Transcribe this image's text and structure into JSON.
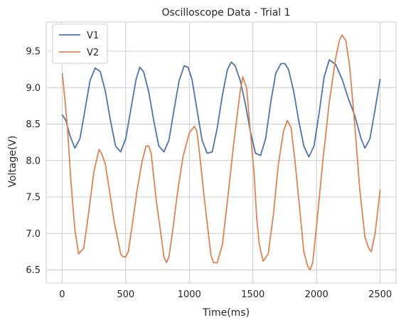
{
  "chart_data": {
    "type": "line",
    "title": "Oscilloscope Data - Trial 1",
    "xlabel": "Time(ms)",
    "ylabel": "Voltage(V)",
    "xlim": [
      -125,
      2625
    ],
    "ylim": [
      6.32,
      9.9
    ],
    "xticks": [
      0,
      500,
      1000,
      1500,
      2000,
      2500
    ],
    "yticks": [
      6.5,
      7.0,
      7.5,
      8.0,
      8.5,
      9.0,
      9.5
    ],
    "ytick_labels": [
      "6.5",
      "7.0",
      "7.5",
      "8.0",
      "8.5",
      "9.0",
      "9.5"
    ],
    "grid": true,
    "legend_position": "top-left",
    "series": [
      {
        "name": "V1",
        "color": "#4c72b0",
        "x": [
          0,
          30,
          60,
          100,
          140,
          180,
          220,
          260,
          300,
          340,
          380,
          420,
          460,
          500,
          540,
          580,
          610,
          640,
          680,
          720,
          760,
          800,
          840,
          880,
          920,
          960,
          990,
          1020,
          1060,
          1100,
          1140,
          1180,
          1220,
          1260,
          1300,
          1330,
          1360,
          1400,
          1440,
          1480,
          1520,
          1560,
          1600,
          1640,
          1680,
          1720,
          1750,
          1780,
          1820,
          1860,
          1900,
          1940,
          1980,
          2020,
          2060,
          2100,
          2150,
          2200,
          2250,
          2300,
          2350,
          2380,
          2420,
          2460,
          2500
        ],
        "values": [
          8.63,
          8.55,
          8.35,
          8.17,
          8.3,
          8.7,
          9.1,
          9.27,
          9.22,
          8.95,
          8.55,
          8.2,
          8.12,
          8.3,
          8.7,
          9.1,
          9.28,
          9.22,
          8.95,
          8.55,
          8.2,
          8.12,
          8.28,
          8.7,
          9.1,
          9.3,
          9.28,
          9.12,
          8.7,
          8.28,
          8.1,
          8.12,
          8.45,
          8.9,
          9.25,
          9.35,
          9.3,
          9.1,
          8.78,
          8.4,
          8.1,
          8.07,
          8.3,
          8.8,
          9.2,
          9.33,
          9.33,
          9.25,
          8.95,
          8.55,
          8.2,
          8.05,
          8.2,
          8.65,
          9.15,
          9.38,
          9.32,
          9.12,
          8.85,
          8.62,
          8.3,
          8.17,
          8.3,
          8.7,
          9.12
        ]
      },
      {
        "name": "V2",
        "color": "#dd8452",
        "x": [
          0,
          10,
          40,
          70,
          100,
          130,
          170,
          210,
          250,
          290,
          310,
          340,
          380,
          410,
          440,
          460,
          480,
          500,
          520,
          550,
          590,
          630,
          660,
          680,
          700,
          740,
          780,
          800,
          820,
          840,
          870,
          910,
          950,
          1000,
          1040,
          1060,
          1080,
          1120,
          1150,
          1170,
          1190,
          1220,
          1260,
          1300,
          1350,
          1400,
          1420,
          1450,
          1480,
          1510,
          1530,
          1550,
          1580,
          1620,
          1660,
          1700,
          1740,
          1770,
          1800,
          1830,
          1870,
          1900,
          1930,
          1950,
          1970,
          2000,
          2050,
          2100,
          2150,
          2180,
          2200,
          2230,
          2260,
          2300,
          2340,
          2380,
          2410,
          2430,
          2460,
          2480,
          2500
        ],
        "values": [
          9.2,
          9.05,
          8.5,
          7.7,
          7.05,
          6.72,
          6.8,
          7.3,
          7.85,
          8.15,
          8.1,
          7.95,
          7.5,
          7.15,
          6.9,
          6.72,
          6.68,
          6.68,
          6.75,
          7.1,
          7.6,
          8.0,
          8.2,
          8.2,
          8.1,
          7.45,
          6.95,
          6.68,
          6.6,
          6.68,
          7.05,
          7.6,
          8.05,
          8.38,
          8.47,
          8.4,
          8.1,
          7.45,
          7.0,
          6.7,
          6.6,
          6.6,
          6.85,
          7.45,
          8.25,
          8.95,
          9.15,
          9.0,
          8.4,
          7.8,
          7.2,
          6.85,
          6.62,
          6.72,
          7.25,
          7.95,
          8.4,
          8.55,
          8.45,
          8.0,
          7.3,
          6.75,
          6.55,
          6.5,
          6.6,
          7.1,
          8.0,
          8.8,
          9.4,
          9.65,
          9.72,
          9.65,
          9.3,
          8.5,
          7.6,
          6.95,
          6.8,
          6.75,
          7.0,
          7.3,
          7.6
        ]
      }
    ]
  }
}
